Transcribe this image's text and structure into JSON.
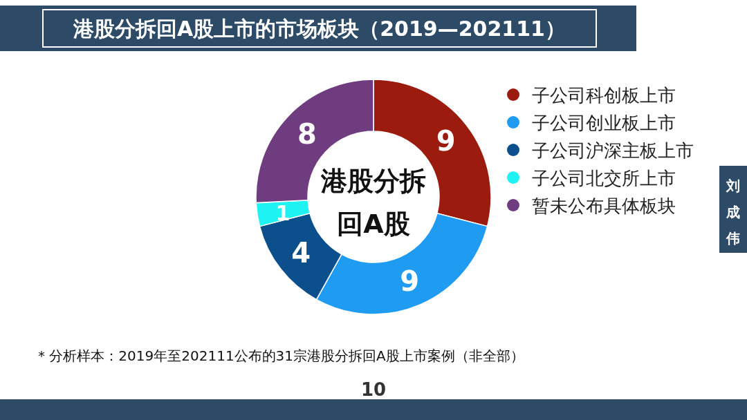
{
  "chart_data": {
    "type": "donut",
    "title": "港股分拆回A股上市的市场板块（2019—202111）",
    "categories": [
      "子公司科创板上市",
      "子公司创业板上市",
      "子公司沪深主板上市",
      "子公司北交所上市",
      "暂未公布具体板块"
    ],
    "values": [
      9,
      9,
      4,
      1,
      8
    ],
    "colors": [
      "#9b1b0f",
      "#1f9cf2",
      "#0b4f8d",
      "#1ef2f2",
      "#6f3c80"
    ],
    "data_labels": true,
    "legend": "right",
    "annotations": [
      "港股分拆回A股",
      "* 分析样本：2019年至202111公布的31宗港股分拆回A股上市案例（非全部）",
      "10",
      "刘成伟"
    ]
  }
}
